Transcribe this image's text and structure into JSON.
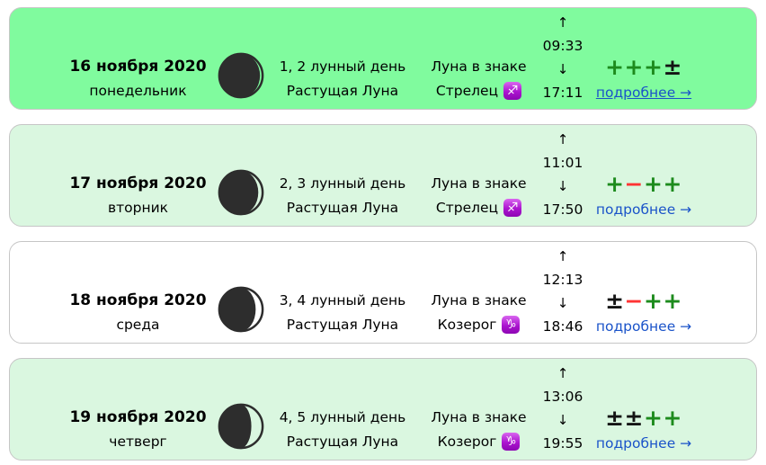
{
  "colors": {
    "row-bright": "#80fb9e",
    "row-green": "#daf7e0",
    "row-white": "#ffffff",
    "row-border": "#c6c6c6",
    "plus": "#1d8b1d",
    "minus": "#ff3333",
    "neutral": "#141414",
    "link": "#1a53c9",
    "moon": "#2d2d2d"
  },
  "rows": [
    {
      "style": "bright",
      "date": "16 ноября 2020",
      "weekday": "понедельник",
      "lunar_day": "1, 2 лунный день",
      "phase": "Растущая Луна",
      "zodiac_label": "Луна в знаке",
      "zodiac_name": "Стрелец",
      "zodiac_glyph": "♐",
      "rise_arrow": "↑",
      "moonrise": "09:33",
      "set_arrow": "↓",
      "moonset": "17:11",
      "rating": [
        {
          "symbol": "+",
          "kind": "plus"
        },
        {
          "symbol": "+",
          "kind": "plus"
        },
        {
          "symbol": "+",
          "kind": "plus"
        },
        {
          "symbol": "±",
          "kind": "neutral"
        }
      ],
      "link": "подробнее →",
      "link_underlined": true,
      "moon_rx": 22
    },
    {
      "style": "green",
      "date": "17 ноября 2020",
      "weekday": "вторник",
      "lunar_day": "2, 3 лунный день",
      "phase": "Растущая Луна",
      "zodiac_label": "Луна в знаке",
      "zodiac_name": "Стрелец",
      "zodiac_glyph": "♐",
      "rise_arrow": "↑",
      "moonrise": "11:01",
      "set_arrow": "↓",
      "moonset": "17:50",
      "rating": [
        {
          "symbol": "+",
          "kind": "plus"
        },
        {
          "symbol": "−",
          "kind": "minus"
        },
        {
          "symbol": "+",
          "kind": "plus"
        },
        {
          "symbol": "+",
          "kind": "plus"
        }
      ],
      "link": "подробнее →",
      "link_underlined": false,
      "moon_rx": 20
    },
    {
      "style": "white",
      "date": "18 ноября 2020",
      "weekday": "среда",
      "lunar_day": "3, 4 лунный день",
      "phase": "Растущая Луна",
      "zodiac_label": "Луна в знаке",
      "zodiac_name": "Козерог",
      "zodiac_glyph": "♑",
      "rise_arrow": "↑",
      "moonrise": "12:13",
      "set_arrow": "↓",
      "moonset": "18:46",
      "rating": [
        {
          "symbol": "±",
          "kind": "neutral"
        },
        {
          "symbol": "−",
          "kind": "minus"
        },
        {
          "symbol": "+",
          "kind": "plus"
        },
        {
          "symbol": "+",
          "kind": "plus"
        }
      ],
      "link": "подробнее →",
      "link_underlined": false,
      "moon_rx": 17
    },
    {
      "style": "green",
      "date": "19 ноября 2020",
      "weekday": "четверг",
      "lunar_day": "4, 5 лунный день",
      "phase": "Растущая Луна",
      "zodiac_label": "Луна в знаке",
      "zodiac_name": "Козерог",
      "zodiac_glyph": "♑",
      "rise_arrow": "↑",
      "moonrise": "13:06",
      "set_arrow": "↓",
      "moonset": "19:55",
      "rating": [
        {
          "symbol": "±",
          "kind": "neutral"
        },
        {
          "symbol": "±",
          "kind": "neutral"
        },
        {
          "symbol": "+",
          "kind": "plus"
        },
        {
          "symbol": "+",
          "kind": "plus"
        }
      ],
      "link": "подробнее →",
      "link_underlined": false,
      "moon_rx": 12
    }
  ]
}
